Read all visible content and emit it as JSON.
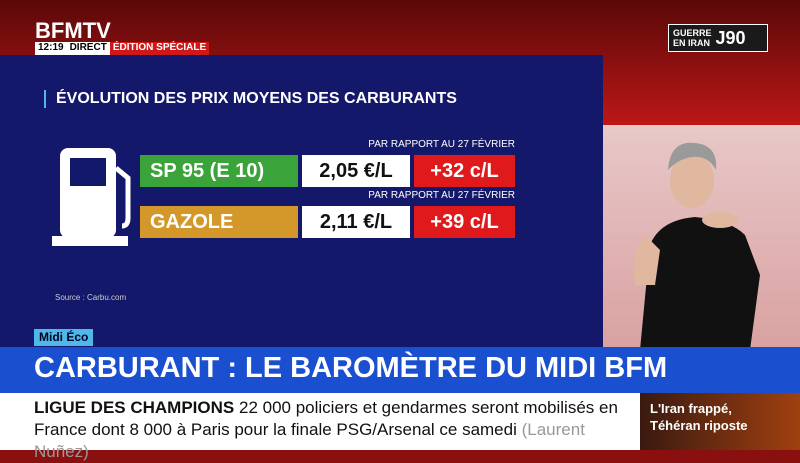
{
  "header": {
    "brand": "BFMTV",
    "time": "12:19",
    "live": "DIRECT",
    "edition": "ÉDITION SPÉCIALE"
  },
  "badge": {
    "line1": "GUERRE",
    "line2": "EN IRAN",
    "day": "J90"
  },
  "panel": {
    "title": "ÉVOLUTION DES PRIX MOYENS DES CARBURANTS",
    "rows": [
      {
        "note": "PAR RAPPORT AU 27 FÉVRIER",
        "fuel": "SP 95 (E 10)",
        "price": "2,05 €/L",
        "change": "+32 c/L"
      },
      {
        "note": "PAR RAPPORT AU 27 FÉVRIER",
        "fuel": "GAZOLE",
        "price": "2,11 €/L",
        "change": "+39 c/L"
      }
    ],
    "source": "Source : Carbu.com"
  },
  "tag": "Midi Éco",
  "headline": "CARBURANT : LE BAROMÈTRE DU MIDI BFM",
  "ticker": {
    "topic": "LIGUE DES CHAMPIONS",
    "text": "22 000 policiers et gendarmes seront mobilisés en France dont 8 000 à Paris pour la finale PSG/Arsenal ce samedi",
    "source": "(Laurent Nuñez)"
  },
  "promo": {
    "line1": "L'Iran frappé,",
    "line2": "Téhéran riposte"
  }
}
